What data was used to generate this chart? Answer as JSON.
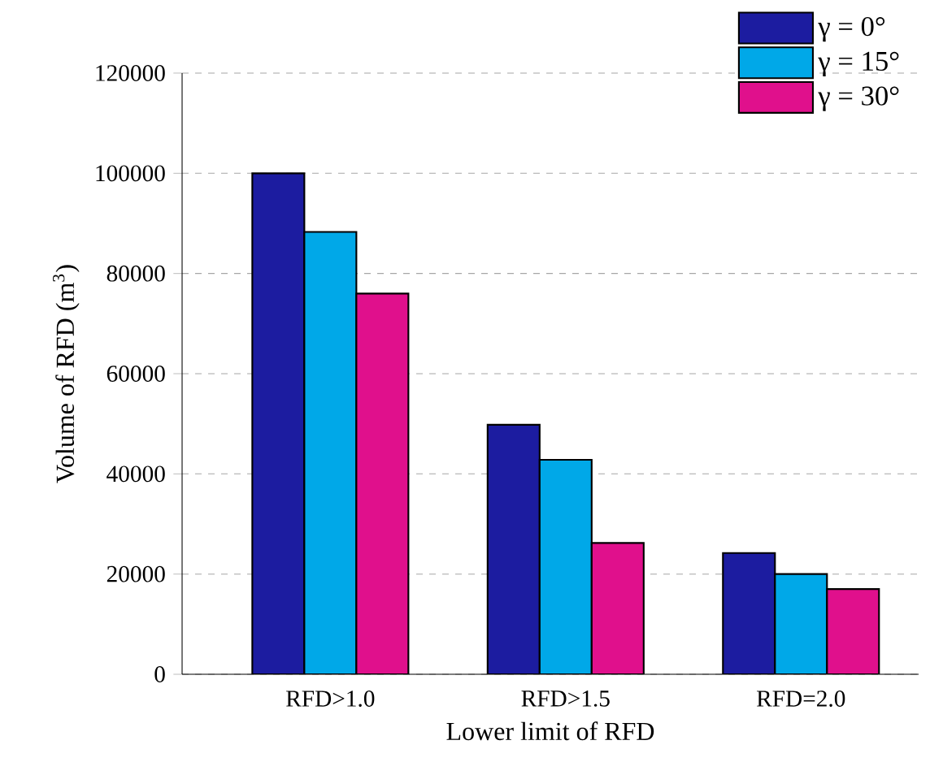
{
  "chart_data": {
    "type": "bar",
    "xlabel": "Lower limit of RFD",
    "ylabel": "Volume of RFD (m$^{3}$)",
    "categories": [
      "RFD>1.0",
      "RFD>1.5",
      "RFD=2.0"
    ],
    "series": [
      {
        "name": "γ = 0°",
        "color": "#1c1ca0",
        "values": [
          100000,
          49800,
          24200
        ]
      },
      {
        "name": "γ = 15°",
        "color": "#00a8e8",
        "values": [
          88300,
          42800,
          20000
        ]
      },
      {
        "name": "γ = 30°",
        "color": "#e0108c",
        "values": [
          76000,
          26200,
          17000
        ]
      }
    ],
    "ylim": [
      0,
      120000
    ],
    "yticks": [
      0,
      20000,
      40000,
      60000,
      80000,
      100000,
      120000
    ],
    "grid": "y",
    "legend": "top right"
  }
}
